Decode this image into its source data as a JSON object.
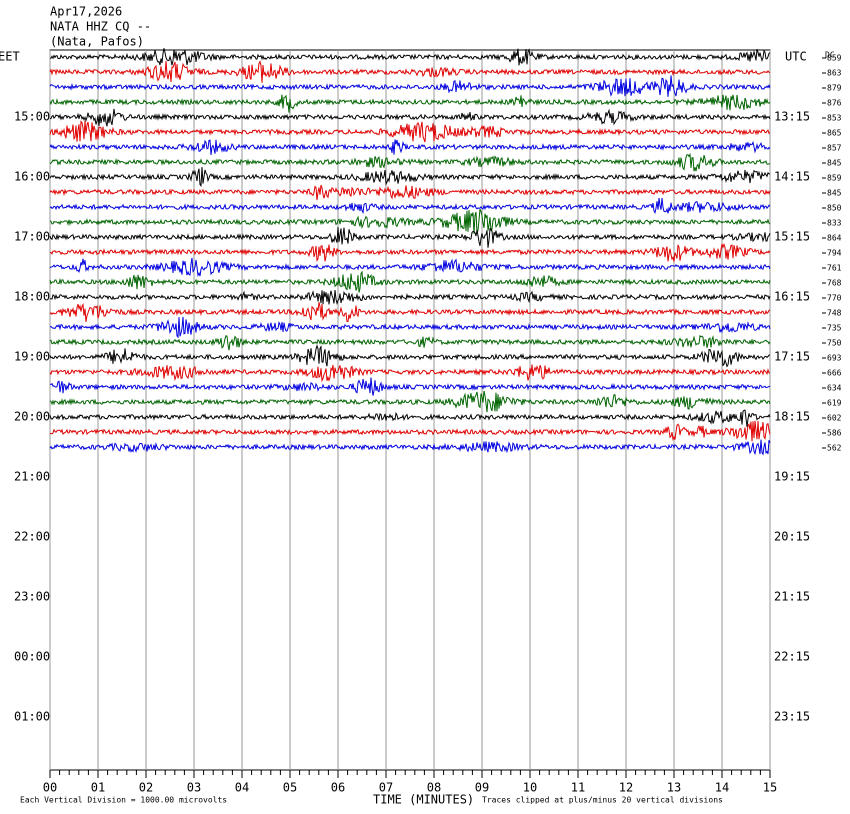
{
  "chart_data": {
    "type": "helicorder",
    "title_lines": [
      "Apr17,2026",
      "NATA HHZ CQ --",
      "(Nata, Pafos)"
    ],
    "left_zone": "EET",
    "right_zone": "UTC",
    "dc_header": "DC",
    "left_hour_labels": [
      "15:00",
      "16:00",
      "17:00",
      "18:00",
      "19:00",
      "20:00",
      "21:00",
      "22:00",
      "23:00",
      "00:00",
      "01:00"
    ],
    "right_hour_labels": [
      "13:15",
      "14:15",
      "15:15",
      "16:15",
      "17:15",
      "18:15",
      "19:15",
      "20:15",
      "21:15",
      "22:15",
      "23:15"
    ],
    "dc_offsets": [
      859,
      863,
      879,
      876,
      853,
      865,
      857,
      845,
      859,
      845,
      850,
      833,
      864,
      794,
      761,
      768,
      770,
      748,
      735,
      750,
      693,
      666,
      634,
      619,
      602,
      586,
      562
    ],
    "trace_colors": [
      "#000000",
      "#e00000",
      "#0000e0",
      "#006400"
    ],
    "xlim": [
      0,
      15
    ],
    "xticks": [
      {
        "value": 0,
        "label": "00"
      },
      {
        "value": 1,
        "label": "01"
      },
      {
        "value": 2,
        "label": "02"
      },
      {
        "value": 3,
        "label": "03"
      },
      {
        "value": 4,
        "label": "04"
      },
      {
        "value": 5,
        "label": "05"
      },
      {
        "value": 6,
        "label": "06"
      },
      {
        "value": 7,
        "label": "07"
      },
      {
        "value": 8,
        "label": "08"
      },
      {
        "value": 9,
        "label": "09"
      },
      10,
      11,
      12,
      13,
      14,
      15
    ],
    "x_label": "TIME (MINUTES)",
    "scale_note": "Each Vertical Division = 1000.00 microvolts",
    "clip_note": "Traces clipped at plus/minus 20 vertical divisions",
    "grid": true
  }
}
